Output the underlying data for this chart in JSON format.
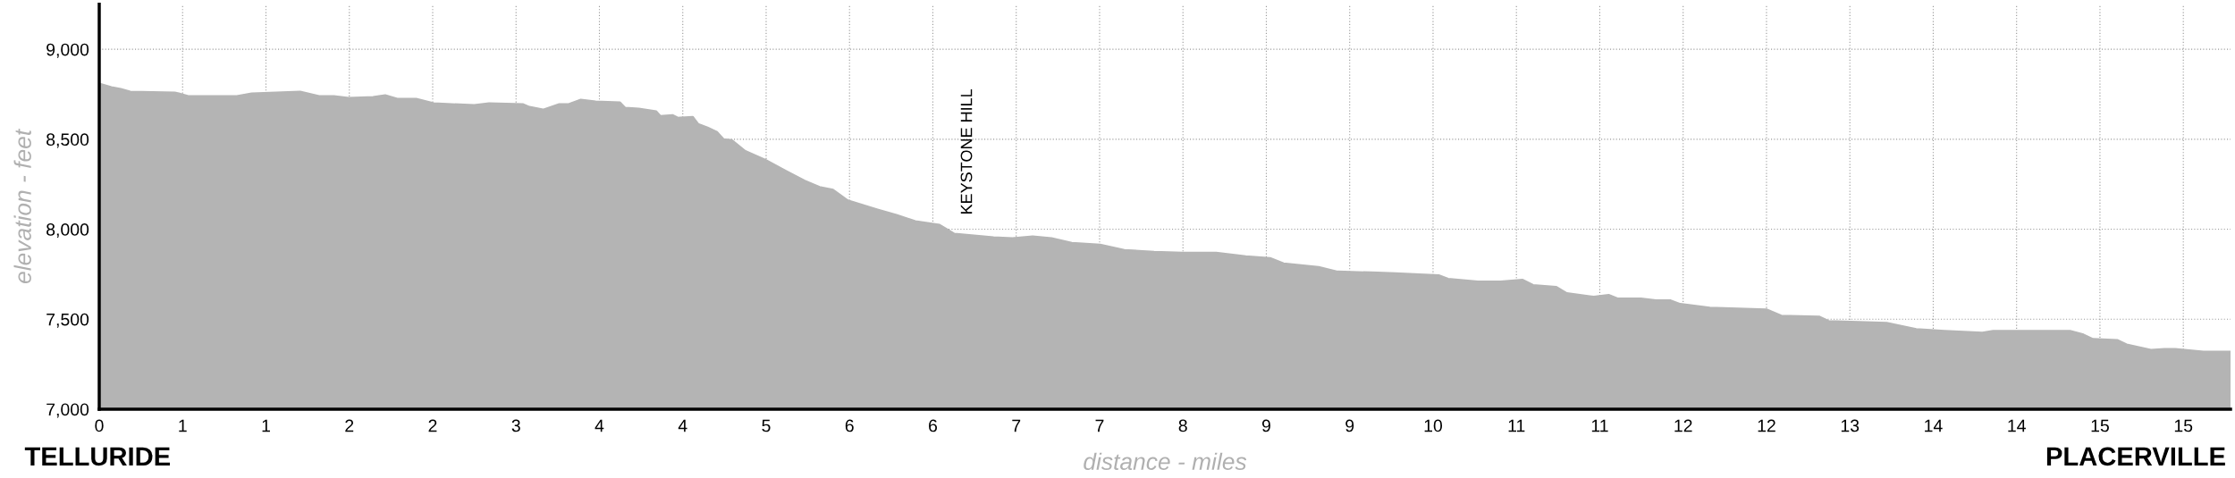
{
  "chart_data": {
    "type": "area",
    "xlabel": "distance - miles",
    "ylabel": "elevation - feet",
    "series": [
      {
        "color": "#b4b4b4",
        "x": [
          0,
          0.09,
          0.16,
          0.23,
          0.56,
          0.59,
          0.66,
          1.02,
          1.13,
          1.49,
          1.63,
          1.74,
          1.85,
          2.03,
          2.12,
          2.21,
          2.35,
          2.48,
          2.78,
          2.89,
          3.14,
          3.19,
          3.29,
          3.41,
          3.48,
          3.57,
          3.68,
          3.86,
          3.9,
          4.0,
          4.13,
          4.16,
          4.25,
          4.29,
          4.4,
          4.44,
          4.51,
          4.58,
          4.63,
          4.69,
          4.79,
          4.94,
          5.09,
          5.23,
          5.34,
          5.44,
          5.55,
          5.77,
          5.91,
          6.05,
          6.23,
          6.34,
          6.63,
          6.77,
          6.92,
          7.06,
          7.21,
          7.42,
          7.6,
          7.82,
          8.03,
          8.28,
          8.5,
          8.68,
          8.78,
          9.04,
          9.18,
          9.43,
          9.61,
          9.93,
          10.0,
          10.22,
          10.39,
          10.55,
          10.63,
          10.8,
          10.88,
          11.08,
          11.19,
          11.26,
          11.43,
          11.54,
          11.65,
          11.72,
          11.94,
          12.36,
          12.47,
          12.75,
          12.82,
          13.04,
          13.25,
          13.47,
          13.68,
          13.96,
          14.04,
          14.61,
          14.71,
          14.78,
          14.96,
          15.03,
          15.21,
          15.31,
          15.39,
          15.6,
          15.67,
          15.8
        ],
        "values": [
          8810,
          8790,
          8780,
          8765,
          8760,
          8755,
          8740,
          8740,
          8755,
          8765,
          8740,
          8740,
          8730,
          8735,
          8745,
          8725,
          8725,
          8700,
          8690,
          8700,
          8695,
          8680,
          8665,
          8695,
          8695,
          8720,
          8710,
          8705,
          8675,
          8670,
          8655,
          8630,
          8635,
          8620,
          8625,
          8585,
          8565,
          8540,
          8500,
          8495,
          8435,
          8385,
          8325,
          8270,
          8235,
          8220,
          8160,
          8110,
          8080,
          8045,
          8025,
          7975,
          7955,
          7950,
          7960,
          7950,
          7925,
          7915,
          7885,
          7875,
          7870,
          7870,
          7850,
          7840,
          7810,
          7790,
          7765,
          7760,
          7755,
          7745,
          7725,
          7710,
          7710,
          7720,
          7690,
          7680,
          7645,
          7625,
          7635,
          7615,
          7615,
          7605,
          7605,
          7585,
          7565,
          7555,
          7520,
          7515,
          7490,
          7485,
          7480,
          7445,
          7435,
          7425,
          7435,
          7435,
          7415,
          7390,
          7385,
          7360,
          7330,
          7335,
          7335,
          7320,
          7320,
          7320
        ]
      }
    ],
    "xlim": [
      0,
      15.8
    ],
    "xticks": [
      {
        "value": 0,
        "label": "0"
      },
      {
        "value": 0.618,
        "label": "1"
      },
      {
        "value": 1.236,
        "label": "1"
      },
      {
        "value": 1.854,
        "label": "2"
      },
      {
        "value": 2.472,
        "label": "2"
      },
      {
        "value": 3.09,
        "label": "3"
      },
      {
        "value": 3.708,
        "label": "4"
      },
      {
        "value": 4.326,
        "label": "4"
      },
      {
        "value": 4.944,
        "label": "5"
      },
      {
        "value": 5.562,
        "label": "6"
      },
      {
        "value": 6.18,
        "label": "6"
      },
      {
        "value": 6.798,
        "label": "7"
      },
      {
        "value": 7.416,
        "label": "7"
      },
      {
        "value": 8.034,
        "label": "8"
      },
      {
        "value": 8.652,
        "label": "9"
      },
      {
        "value": 9.27,
        "label": "9"
      },
      {
        "value": 9.888,
        "label": "10"
      },
      {
        "value": 10.506,
        "label": "11"
      },
      {
        "value": 11.124,
        "label": "11"
      },
      {
        "value": 11.742,
        "label": "12"
      },
      {
        "value": 12.36,
        "label": "12"
      },
      {
        "value": 12.978,
        "label": "13"
      },
      {
        "value": 13.596,
        "label": "14"
      },
      {
        "value": 14.214,
        "label": "14"
      },
      {
        "value": 14.832,
        "label": "15"
      },
      {
        "value": 15.45,
        "label": "15"
      }
    ],
    "ylim": [
      7000,
      9250
    ],
    "yticks": [
      {
        "value": 7000,
        "label": "7,000"
      },
      {
        "value": 7500,
        "label": "7,500"
      },
      {
        "value": 8000,
        "label": "8,000"
      },
      {
        "value": 8500,
        "label": "8,500"
      },
      {
        "value": 9000,
        "label": "9,000"
      }
    ],
    "grid": true,
    "annotations": [
      "KEYSTONE HILL",
      "TELLURIDE",
      "PLACERVILLE"
    ]
  }
}
